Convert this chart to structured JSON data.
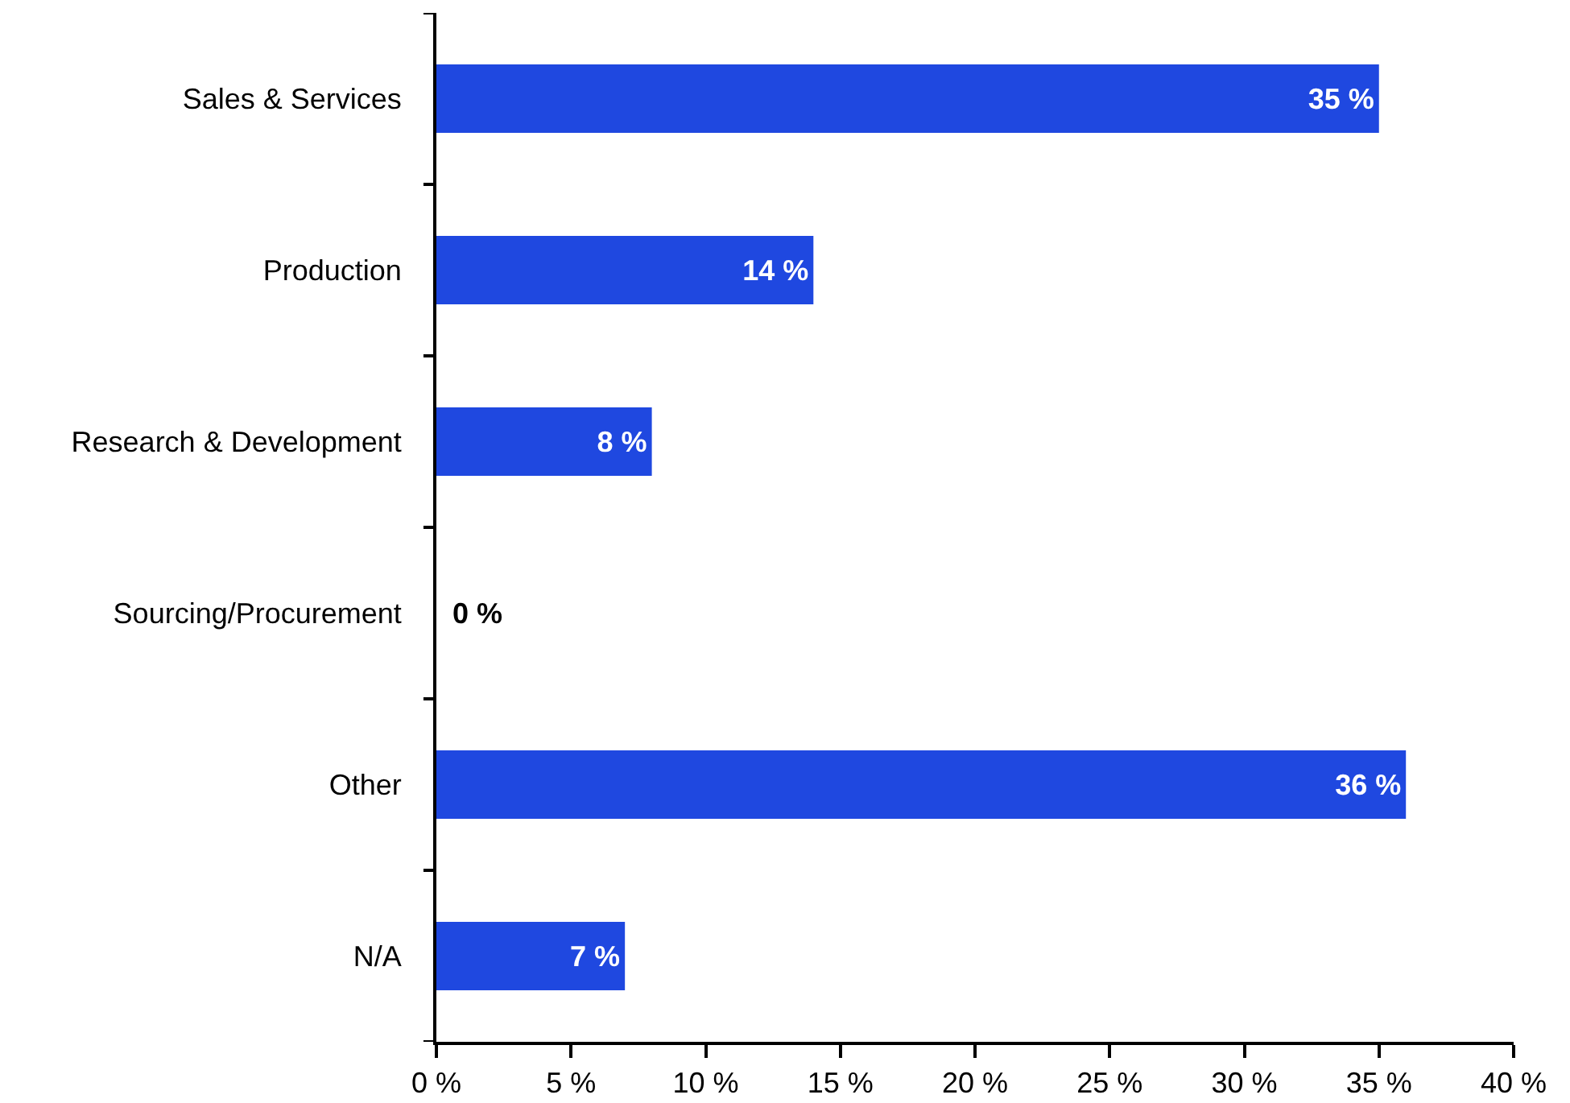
{
  "chart_data": {
    "type": "bar",
    "orientation": "horizontal",
    "categories": [
      "Sales & Services",
      "Production",
      "Research & Development",
      "Sourcing/Procurement",
      "Other",
      "N/A"
    ],
    "values": [
      35,
      14,
      8,
      0,
      36,
      7
    ],
    "value_labels": [
      "35 %",
      "14 %",
      "8 %",
      "0 %",
      "36 %",
      "7 %"
    ],
    "color": "#1f48e0",
    "xlim": [
      0,
      40
    ],
    "xticks": [
      {
        "value": 0,
        "label": "0 %"
      },
      {
        "value": 5,
        "label": "5 %"
      },
      {
        "value": 10,
        "label": "10 %"
      },
      {
        "value": 15,
        "label": "15 %"
      },
      {
        "value": 20,
        "label": "20 %"
      },
      {
        "value": 25,
        "label": "25 %"
      },
      {
        "value": 30,
        "label": "30 %"
      },
      {
        "value": 35,
        "label": "35 %"
      },
      {
        "value": 40,
        "label": "40 %"
      }
    ],
    "grid": false
  }
}
